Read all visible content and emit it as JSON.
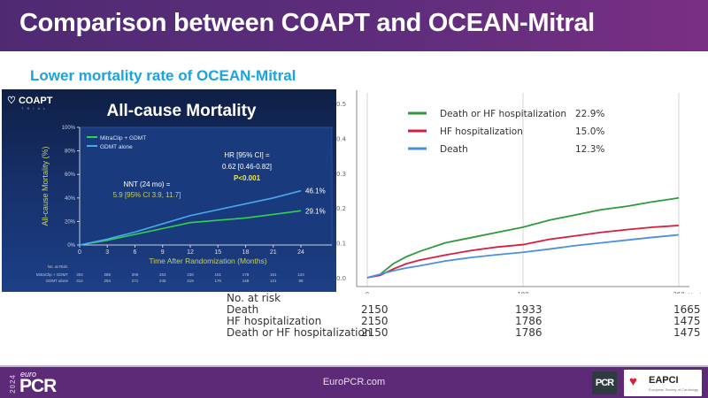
{
  "header": {
    "title": "Comparison between COAPT and OCEAN-Mitral"
  },
  "subtitle": "Lower mortality rate of OCEAN-Mitral",
  "coapt_panel": {
    "logo": "COAPT",
    "logo_sub": "TRIAL",
    "title": "All-cause Mortality",
    "ylabel": "All-cause Mortality (%)",
    "xlabel": "Time After Randomization (Months)",
    "yticks": [
      "0%",
      "20%",
      "40%",
      "60%",
      "80%",
      "100%"
    ],
    "xticks": [
      "0",
      "3",
      "6",
      "9",
      "12",
      "15",
      "18",
      "21",
      "24"
    ],
    "legend": [
      {
        "label": "MitraClip + GDMT",
        "color": "#2fd44a"
      },
      {
        "label": "GDMT alone",
        "color": "#4aa8f0"
      }
    ],
    "hr_line1": "HR [95% CI] =",
    "hr_line2": "0.62 [0.46-0.82]",
    "hr_p": "P<0.001",
    "nnt_line1": "NNT (24 mo) =",
    "nnt_line2": "5.9 [95% CI 3.9, 11.7]",
    "end_labels": [
      "46.1%",
      "29.1%"
    ],
    "risk_header": "No. at Risk:",
    "risk_rows": [
      {
        "label": "MitraClip + GDMT",
        "values": [
          "302",
          "286",
          "269",
          "253",
          "236",
          "191",
          "178",
          "161",
          "124"
        ]
      },
      {
        "label": "GDMT alone",
        "values": [
          "312",
          "294",
          "271",
          "245",
          "219",
          "176",
          "148",
          "121",
          "88"
        ]
      }
    ]
  },
  "risk_table": {
    "header": "No. at risk",
    "rows": [
      {
        "label": "Death",
        "values": [
          "2150",
          "1933",
          "1665"
        ]
      },
      {
        "label": "HF hospitalization",
        "values": [
          "2150",
          "1786",
          "1475"
        ]
      },
      {
        "label": "Death or HF hospitalization",
        "values": [
          "2150",
          "1786",
          "1475"
        ]
      }
    ]
  },
  "footer": {
    "url": "EuroPCR.com",
    "brand_year": "2024",
    "brand_euro": "euro",
    "brand_pcr": "PCR",
    "badge_pcr": "PCR",
    "badge_eapci": "EAPCI",
    "badge_eapci_sub": "European Society of Cardiology"
  },
  "chart_data": [
    {
      "type": "line",
      "title": "All-cause Mortality",
      "xlabel": "Time After Randomization (Months)",
      "ylabel": "All-cause Mortality (%)",
      "xlim": [
        0,
        24
      ],
      "ylim": [
        0,
        100
      ],
      "x": [
        0,
        3,
        6,
        9,
        12,
        15,
        18,
        21,
        24
      ],
      "series": [
        {
          "name": "MitraClip + GDMT",
          "color": "#2fd44a",
          "values": [
            0,
            4,
            9,
            14,
            19,
            21,
            23,
            26,
            29.1
          ]
        },
        {
          "name": "GDMT alone",
          "color": "#4aa8f0",
          "values": [
            0,
            5,
            11,
            18,
            25,
            30,
            35,
            40,
            46.1
          ]
        }
      ],
      "annotations": [
        "HR [95% CI] = 0.62 [0.46-0.82]",
        "P<0.001",
        "NNT (24 mo) = 5.9 [95% CI 3.9, 11.7]"
      ],
      "legend_position": "top-left"
    },
    {
      "type": "line",
      "title": "",
      "xlabel": "(days)",
      "ylabel": "",
      "xlim": [
        0,
        360
      ],
      "ylim": [
        0,
        0.5
      ],
      "xticks": [
        "0",
        "180",
        "360"
      ],
      "yticks": [
        "0.0",
        "0.1",
        "0.2",
        "0.3",
        "0.4",
        "0.5"
      ],
      "x": [
        0,
        15,
        30,
        45,
        60,
        90,
        120,
        150,
        180,
        210,
        240,
        270,
        300,
        330,
        360
      ],
      "series": [
        {
          "name": "Death or HF hospitalization",
          "label_value": "22.9%",
          "color": "#2e9a3c",
          "values": [
            0,
            0.01,
            0.04,
            0.06,
            0.075,
            0.1,
            0.115,
            0.13,
            0.145,
            0.165,
            0.18,
            0.195,
            0.205,
            0.218,
            0.229
          ]
        },
        {
          "name": "HF hospitalization",
          "label_value": "15.0%",
          "color": "#d81e3c",
          "values": [
            0,
            0.007,
            0.025,
            0.04,
            0.05,
            0.065,
            0.078,
            0.088,
            0.095,
            0.11,
            0.12,
            0.13,
            0.138,
            0.145,
            0.15
          ]
        },
        {
          "name": "Death",
          "label_value": "12.3%",
          "color": "#4a8fe0",
          "values": [
            0,
            0.01,
            0.02,
            0.028,
            0.034,
            0.048,
            0.058,
            0.066,
            0.073,
            0.082,
            0.092,
            0.1,
            0.108,
            0.116,
            0.123
          ]
        }
      ],
      "grid": true,
      "legend_position": "top-left"
    }
  ]
}
